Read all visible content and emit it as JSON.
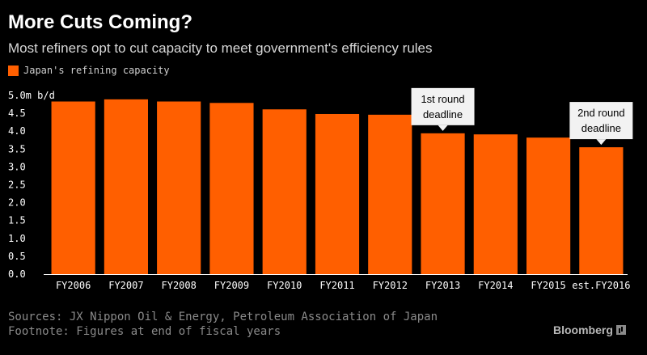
{
  "title": "More Cuts Coming?",
  "subtitle": "Most refiners opt to cut capacity to meet government's efficiency rules",
  "legend": {
    "label": "Japan's refining capacity",
    "color": "#ff5f00"
  },
  "source": "Sources: JX Nippon Oil & Energy, Petroleum Association of Japan",
  "footnote": "Footnote: Figures at end of fiscal years",
  "brand": "Bloomberg",
  "chart_data": {
    "type": "bar",
    "categories": [
      "FY2006",
      "FY2007",
      "FY2008",
      "FY2009",
      "FY2010",
      "FY2011",
      "FY2012",
      "FY2013",
      "FY2014",
      "FY2015",
      "est.FY2016"
    ],
    "series": [
      {
        "name": "Japan's refining capacity",
        "values": [
          4.83,
          4.89,
          4.83,
          4.79,
          4.61,
          4.48,
          4.46,
          3.94,
          3.91,
          3.82,
          3.55
        ],
        "color": "#ff5f00"
      }
    ],
    "title": "More Cuts Coming?",
    "ylim": [
      0,
      5.0
    ],
    "yticks": [
      0.0,
      0.5,
      1.0,
      1.5,
      2.0,
      2.5,
      3.0,
      3.5,
      4.0,
      4.5,
      5.0
    ],
    "ytick_labels": [
      "0.0",
      "0.5",
      "1.0",
      "1.5",
      "2.0",
      "2.5",
      "3.0",
      "3.5",
      "4.0",
      "4.5",
      "5.0m b/d"
    ],
    "annotations": [
      {
        "category": "FY2013",
        "lines": [
          "1st round",
          "deadline"
        ]
      },
      {
        "category": "est.FY2016",
        "lines": [
          "2nd round",
          "deadline"
        ]
      }
    ],
    "grid": false,
    "legend_position": "top-left",
    "axis_color": "#ffffff",
    "tick_label_color": "#ffffff",
    "annotation_bg": "#f2f2f2",
    "annotation_text_color": "#000000"
  }
}
